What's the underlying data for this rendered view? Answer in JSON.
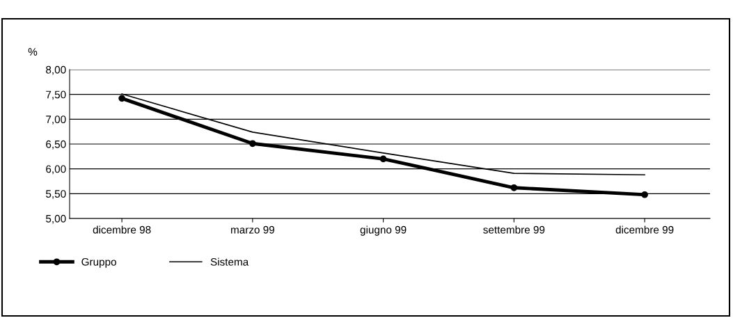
{
  "chart_data": {
    "type": "line",
    "ylabel": "%",
    "categories": [
      "dicembre 98",
      "marzo 99",
      "giugno 99",
      "settembre 99",
      "dicembre 99"
    ],
    "series": [
      {
        "name": "Gruppo",
        "color": "#000000",
        "values": [
          7.42,
          6.51,
          6.2,
          5.62,
          5.48
        ],
        "marker": "circle"
      },
      {
        "name": "Sistema",
        "color": "#000000",
        "values": [
          7.51,
          6.74,
          6.32,
          5.91,
          5.88
        ],
        "marker": "none"
      }
    ],
    "ylim": [
      5.0,
      8.0
    ],
    "yticks": [
      {
        "value": 5.0,
        "label": "5,00"
      },
      {
        "value": 5.5,
        "label": "5,50"
      },
      {
        "value": 6.0,
        "label": "6,00"
      },
      {
        "value": 6.5,
        "label": "6,50"
      },
      {
        "value": 7.0,
        "label": "7,00"
      },
      {
        "value": 7.5,
        "label": "7,50"
      },
      {
        "value": 8.0,
        "label": "8,00"
      }
    ],
    "grid": "y",
    "legend": "bottom left",
    "line_style": "solid"
  }
}
